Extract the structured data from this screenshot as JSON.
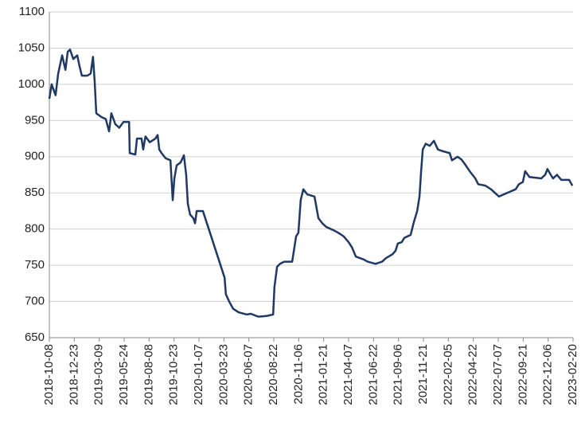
{
  "chart_data": {
    "type": "line",
    "x": [
      "2018-10-08",
      "2018-10-15",
      "2018-10-27",
      "2018-11-04",
      "2018-11-16",
      "2018-11-26",
      "2018-12-03",
      "2018-12-10",
      "2018-12-20",
      "2019-01-01",
      "2019-01-08",
      "2019-01-15",
      "2019-02-01",
      "2019-02-11",
      "2019-02-18",
      "2019-02-23",
      "2019-02-28",
      "2019-03-15",
      "2019-03-29",
      "2019-04-08",
      "2019-04-15",
      "2019-04-27",
      "2019-05-09",
      "2019-05-22",
      "2019-06-08",
      "2019-06-10",
      "2019-06-27",
      "2019-07-02",
      "2019-07-16",
      "2019-07-21",
      "2019-07-28",
      "2019-08-10",
      "2019-08-27",
      "2019-09-03",
      "2019-09-08",
      "2019-09-15",
      "2019-09-27",
      "2019-10-12",
      "2019-10-19",
      "2019-10-24",
      "2019-10-31",
      "2019-11-12",
      "2019-11-22",
      "2019-11-29",
      "2019-12-04",
      "2019-12-11",
      "2019-12-21",
      "2019-12-26",
      "2019-12-31",
      "2020-01-19",
      "2020-03-25",
      "2020-03-29",
      "2020-04-08",
      "2020-04-20",
      "2020-05-07",
      "2020-06-01",
      "2020-06-13",
      "2020-06-30",
      "2020-07-07",
      "2020-07-31",
      "2020-08-20",
      "2020-08-24",
      "2020-09-01",
      "2020-09-10",
      "2020-09-23",
      "2020-10-17",
      "2020-10-29",
      "2020-11-05",
      "2020-11-12",
      "2020-11-20",
      "2020-12-02",
      "2020-12-24",
      "2021-01-05",
      "2021-01-17",
      "2021-01-29",
      "2021-02-22",
      "2021-03-06",
      "2021-03-23",
      "2021-04-07",
      "2021-04-17",
      "2021-04-29",
      "2021-05-23",
      "2021-06-04",
      "2021-06-28",
      "2021-07-18",
      "2021-07-30",
      "2021-08-18",
      "2021-08-28",
      "2021-09-04",
      "2021-09-16",
      "2021-09-24",
      "2021-10-13",
      "2021-10-23",
      "2021-11-02",
      "2021-11-09",
      "2021-11-14",
      "2021-11-19",
      "2021-11-28",
      "2021-12-10",
      "2021-12-23",
      "2022-01-04",
      "2022-01-16",
      "2022-02-09",
      "2022-02-16",
      "2022-03-05",
      "2022-03-17",
      "2022-03-27",
      "2022-04-11",
      "2022-04-28",
      "2022-05-07",
      "2022-05-29",
      "2022-06-15",
      "2022-06-27",
      "2022-07-09",
      "2022-08-03",
      "2022-08-29",
      "2022-09-08",
      "2022-09-20",
      "2022-09-27",
      "2022-10-10",
      "2022-11-15",
      "2022-11-27",
      "2022-12-04",
      "2022-12-14",
      "2022-12-21",
      "2023-01-02",
      "2023-01-15",
      "2023-02-08",
      "2023-02-18"
    ],
    "series": [
      {
        "color": "#1f3864",
        "values": [
          980,
          1000,
          985,
          1015,
          1040,
          1020,
          1045,
          1048,
          1035,
          1040,
          1025,
          1012,
          1012,
          1015,
          1038,
          1005,
          960,
          955,
          952,
          935,
          960,
          945,
          940,
          948,
          948,
          905,
          903,
          925,
          925,
          910,
          928,
          920,
          925,
          930,
          910,
          905,
          898,
          895,
          840,
          870,
          888,
          892,
          902,
          875,
          835,
          820,
          815,
          808,
          825,
          825,
          733,
          710,
          700,
          690,
          685,
          682,
          683,
          680,
          679,
          680,
          682,
          720,
          748,
          752,
          755,
          755,
          790,
          795,
          840,
          855,
          848,
          845,
          815,
          808,
          803,
          798,
          795,
          790,
          782,
          775,
          762,
          758,
          755,
          752,
          755,
          760,
          765,
          770,
          780,
          782,
          788,
          792,
          810,
          825,
          845,
          880,
          910,
          918,
          915,
          922,
          910,
          908,
          905,
          895,
          900,
          896,
          890,
          880,
          870,
          862,
          860,
          855,
          850,
          845,
          850,
          855,
          862,
          865,
          880,
          872,
          870,
          875,
          883,
          875,
          870,
          875,
          868,
          868,
          860
        ]
      }
    ],
    "xlim": [
      "2018-10-08",
      "2023-02-20"
    ],
    "xticks": [
      "2018-10-08",
      "2018-12-23",
      "2019-03-09",
      "2019-05-24",
      "2019-08-08",
      "2019-10-23",
      "2020-01-07",
      "2020-03-23",
      "2020-06-07",
      "2020-08-22",
      "2020-11-06",
      "2021-01-21",
      "2021-04-07",
      "2021-06-22",
      "2021-09-06",
      "2021-11-21",
      "2022-02-05",
      "2022-04-22",
      "2022-07-07",
      "2022-09-21",
      "2022-12-06",
      "2023-02-20"
    ],
    "ylim": [
      650,
      1100
    ],
    "yticks": [
      650,
      700,
      750,
      800,
      850,
      900,
      950,
      1000,
      1050,
      1100
    ],
    "grid": true
  }
}
